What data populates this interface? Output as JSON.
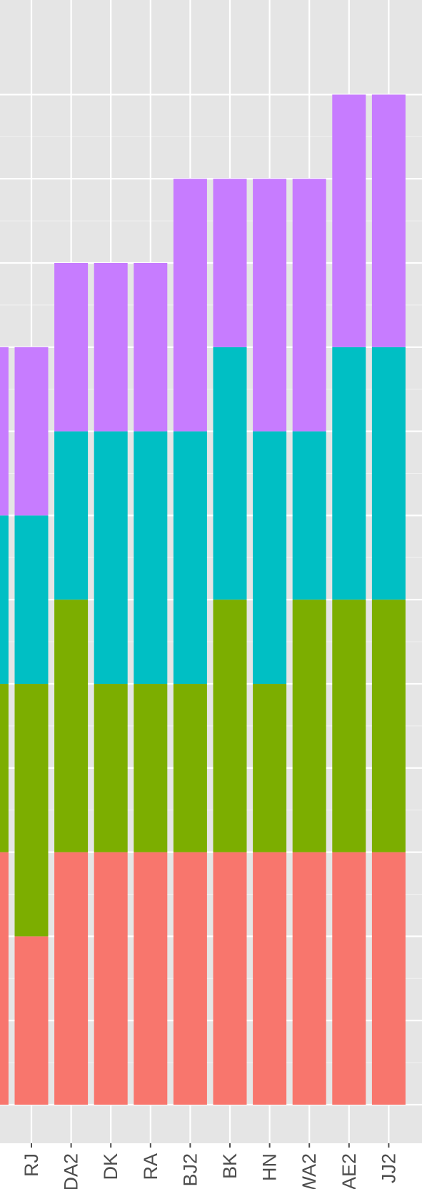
{
  "chart_data": {
    "type": "bar",
    "stacked": true,
    "orientation": "vertical",
    "grid": true,
    "legend": "none",
    "title": "",
    "xlabel": "",
    "ylabel": "",
    "ylim": [
      0,
      12.2
    ],
    "categories": [
      "RJ",
      "DA2",
      "DK",
      "RA",
      "BJ2",
      "BK",
      "HN",
      "WA2",
      "AE2",
      "JJ2"
    ],
    "series": [
      {
        "color": "#F8766D",
        "values": [
          2,
          3,
          3,
          3,
          3,
          3,
          3,
          3,
          3,
          3
        ]
      },
      {
        "color": "#7CAE00",
        "values": [
          3,
          3,
          2,
          2,
          2,
          3,
          2,
          3,
          3,
          3
        ]
      },
      {
        "color": "#00BFC4",
        "values": [
          2,
          2,
          3,
          3,
          3,
          3,
          3,
          2,
          3,
          3
        ]
      },
      {
        "color": "#C77CFF",
        "values": [
          2,
          2,
          2,
          2,
          3,
          2,
          3,
          3,
          3,
          3
        ]
      }
    ]
  }
}
